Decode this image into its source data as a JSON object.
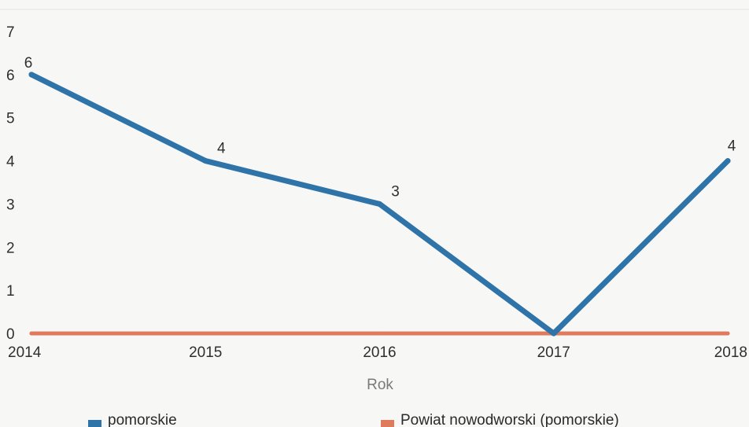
{
  "chart_data": {
    "type": "line",
    "x": [
      "2014",
      "2015",
      "2016",
      "2017",
      "2018"
    ],
    "series": [
      {
        "name": "pomorskie",
        "values": [
          6,
          4,
          3,
          0,
          4
        ],
        "color": "#2f74a8",
        "data_labels": [
          "6",
          "4",
          "3",
          "",
          "4"
        ]
      },
      {
        "name": "Powiat nowodworski (pomorskie)",
        "values": [
          0,
          0,
          0,
          0,
          0
        ],
        "color": "#e07a5c",
        "data_labels": [
          "",
          "",
          "",
          "",
          ""
        ]
      }
    ],
    "xlabel": "Rok",
    "ylabel": "",
    "ylim": [
      0,
      7
    ],
    "yticks": [
      "0",
      "1",
      "2",
      "3",
      "4",
      "5",
      "6",
      "7"
    ],
    "grid": false,
    "legend": "bottom"
  }
}
